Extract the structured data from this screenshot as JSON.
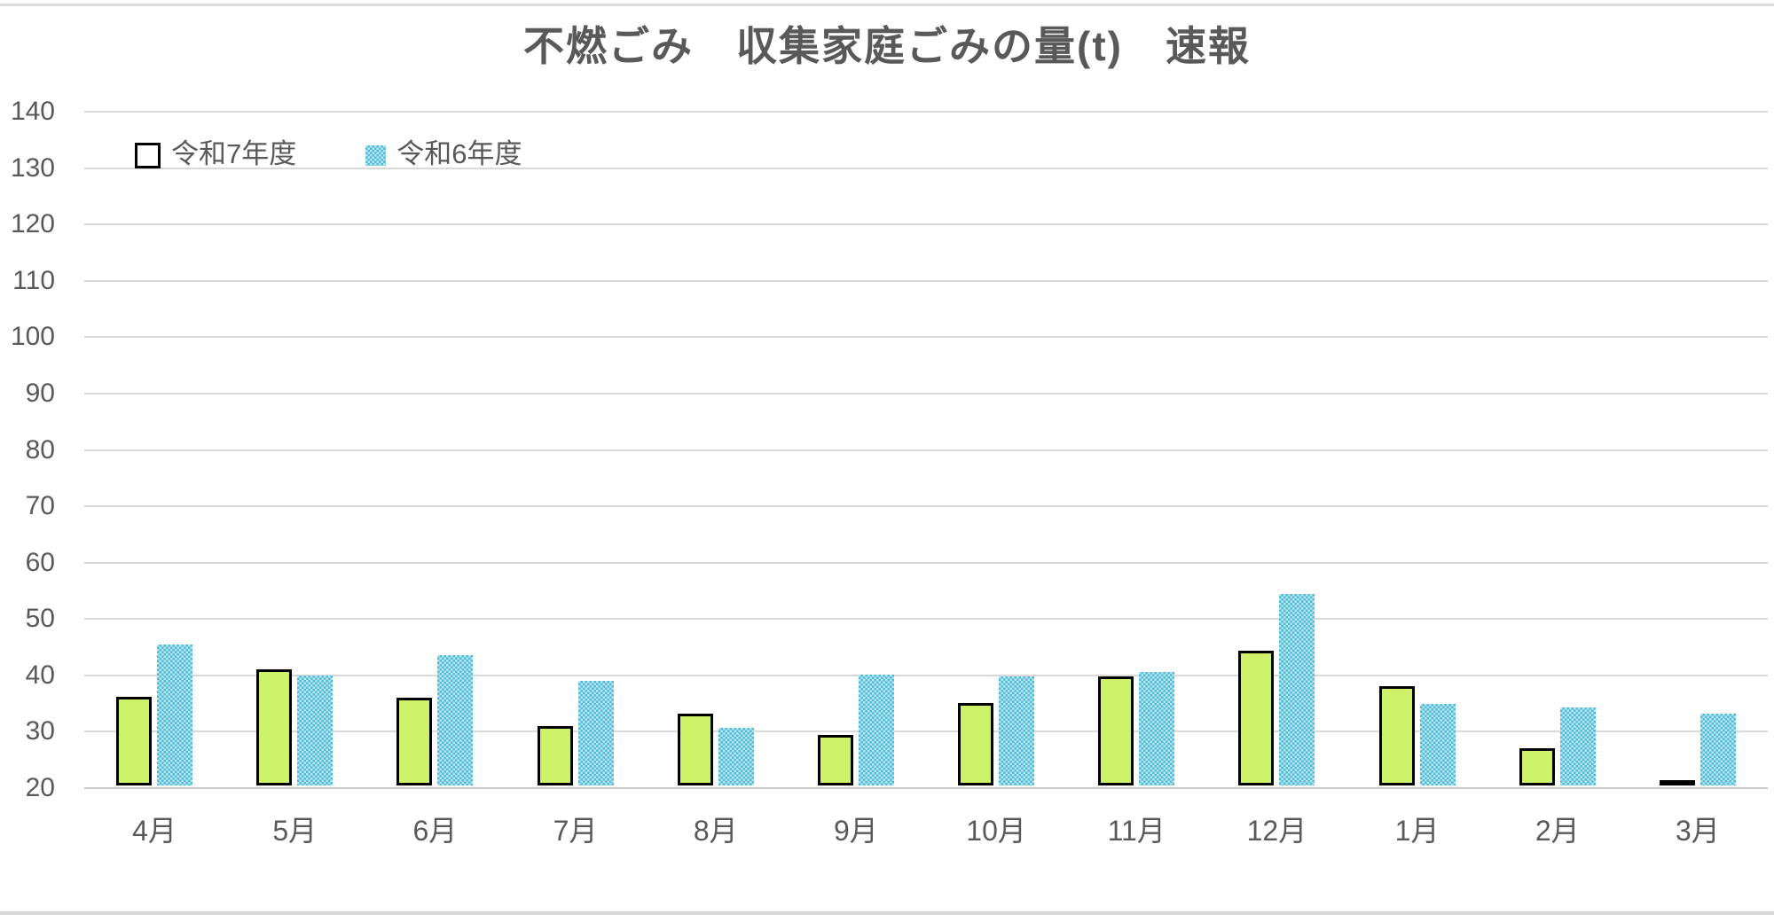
{
  "title": "不燃ごみ　収集家庭ごみの量(t)　速報",
  "legend": {
    "series1_label": "令和7年度",
    "series2_label": "令和6年度"
  },
  "colors": {
    "series1_fill": "#cdf26a",
    "series1_border": "#000000",
    "series2_dark": "#4fbbd6",
    "series2_light": "#b7e5f0",
    "text": "#595959",
    "gridline": "#d9d9d9",
    "page_border": "#dbdbdb"
  },
  "chart_data": {
    "type": "bar",
    "title": "不燃ごみ　収集家庭ごみの量(t)　速報",
    "categories": [
      "4月",
      "5月",
      "6月",
      "7月",
      "8月",
      "9月",
      "10月",
      "11月",
      "12月",
      "1月",
      "2月",
      "3月"
    ],
    "series": [
      {
        "name": "令和7年度",
        "values": [
          35.7,
          40.6,
          35.5,
          30.5,
          32.7,
          29.0,
          34.6,
          39.3,
          43.9,
          37.6,
          26.6,
          20.2
        ]
      },
      {
        "name": "令和6年度",
        "values": [
          45.0,
          39.5,
          43.2,
          38.5,
          30.3,
          39.6,
          39.3,
          40.1,
          53.9,
          34.4,
          33.8,
          32.8
        ]
      }
    ],
    "xlabel": "",
    "ylabel": "",
    "ylim": [
      20,
      140
    ],
    "yticks": [
      140,
      130,
      120,
      110,
      100,
      90,
      80,
      70,
      60,
      50,
      40,
      30,
      20
    ],
    "grid": true,
    "legend_position": "top-left"
  }
}
